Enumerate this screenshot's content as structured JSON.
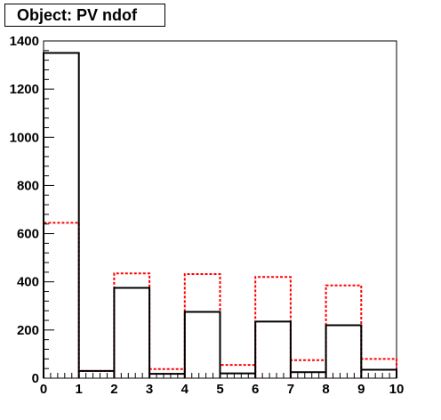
{
  "title": "Object: PV ndof",
  "chart_data": {
    "type": "histogram",
    "title": "Object: PV ndof",
    "xlabel": "",
    "ylabel": "",
    "xlim": [
      0,
      10
    ],
    "ylim": [
      0,
      1400
    ],
    "x_ticks": [
      0,
      1,
      2,
      3,
      4,
      5,
      6,
      7,
      8,
      9,
      10
    ],
    "y_ticks": [
      0,
      200,
      400,
      600,
      800,
      1000,
      1200,
      1400
    ],
    "bin_edges": [
      0,
      1,
      2,
      3,
      4,
      5,
      6,
      7,
      8,
      9,
      10
    ],
    "series": [
      {
        "style": "solid",
        "color": "#000000",
        "values": [
          1350,
          30,
          375,
          18,
          275,
          20,
          235,
          25,
          220,
          35
        ]
      },
      {
        "style": "dashed",
        "color": "#ff0000",
        "values": [
          645,
          30,
          435,
          38,
          432,
          55,
          420,
          75,
          385,
          80
        ]
      }
    ],
    "grid": false,
    "legend": false
  }
}
